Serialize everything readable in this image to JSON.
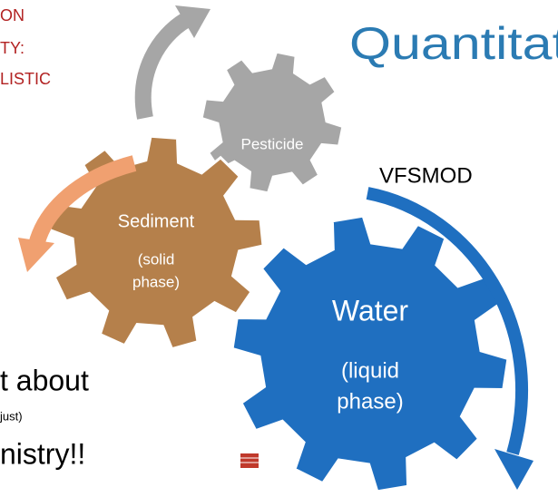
{
  "left_text": [
    "ON",
    "TY:",
    "LISTIC"
  ],
  "title": "Quantitat",
  "gears": {
    "pesticide": {
      "label": "Pesticide"
    },
    "sediment": {
      "label": "Sediment",
      "sub": [
        "(solid",
        "phase)"
      ]
    },
    "water": {
      "label": "Water",
      "sub": [
        "(liquid",
        "phase)"
      ]
    }
  },
  "model": "VFSMOD",
  "bottom_text": [
    "t about",
    "just)",
    "nistry!!"
  ]
}
